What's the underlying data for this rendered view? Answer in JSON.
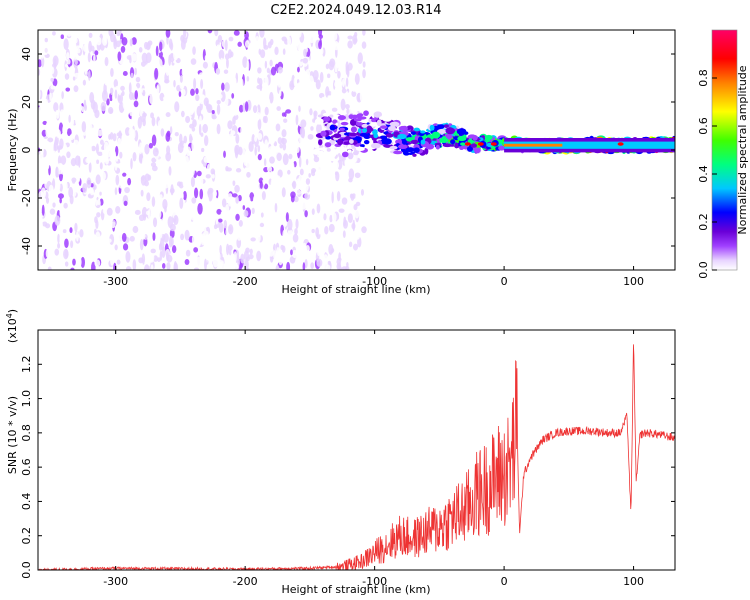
{
  "title": "C2E2.2024.049.12.03.R14",
  "chart_data": [
    {
      "type": "heatmap",
      "xlabel": "Height of straight line (km)",
      "ylabel": "Frequency (Hz)",
      "xlim": [
        -360,
        132
      ],
      "ylim": [
        -50,
        50
      ],
      "xticks": [
        -300,
        -200,
        -100,
        0,
        100
      ],
      "xtick_labels": [
        "-300",
        "-200",
        "-100",
        "0",
        "100"
      ],
      "yticks": [
        -40,
        -20,
        0,
        20,
        40
      ],
      "ytick_labels": [
        "-40",
        "-20",
        "0",
        "20",
        "40"
      ],
      "colorbar": {
        "label": "Normalized spectral amplitude",
        "range": [
          0,
          1
        ],
        "ticks": [
          0.0,
          0.2,
          0.4,
          0.6,
          0.8
        ],
        "tick_labels": [
          "0.0",
          "0.2",
          "0.4",
          "0.6",
          "0.8"
        ],
        "colormap": [
          "#ffffff",
          "#e8d4ff",
          "#a040ff",
          "#6a00d8",
          "#0000ff",
          "#00c8ff",
          "#00ff80",
          "#40ff00",
          "#ffff00",
          "#ff8000",
          "#ff0000",
          "#ff0066"
        ]
      },
      "regions": [
        {
          "desc": "noise",
          "x": [
            -360,
            -120
          ],
          "y": [
            -50,
            50
          ],
          "level": 0.12
        },
        {
          "desc": "signal_band",
          "x": [
            -145,
            132
          ],
          "center_freq_start": 8,
          "center_freq_end": 2,
          "level_start": 0.3,
          "level_end": 0.75
        }
      ]
    },
    {
      "type": "line",
      "xlabel": "Height of straight line (km)",
      "ylabel": "SNR (10 * v/v)",
      "y_multiplier": "(x10",
      "y_multiplier_exp": "4",
      "y_multiplier_close": ")",
      "xlim": [
        -360,
        132
      ],
      "ylim": [
        0,
        1.4
      ],
      "xticks": [
        -300,
        -200,
        -100,
        0,
        100
      ],
      "xtick_labels": [
        "-300",
        "-200",
        "-100",
        "0",
        "100"
      ],
      "yticks": [
        0.0,
        0.2,
        0.4,
        0.6,
        0.8,
        1.0,
        1.2
      ],
      "ytick_labels": [
        "0.0",
        "0.2",
        "0.4",
        "0.6",
        "0.8",
        "1.0",
        "1.2"
      ],
      "color": "#ee3333",
      "series": [
        {
          "x": [
            -360,
            -300,
            -200,
            -150,
            -125,
            -110,
            -100,
            -90,
            -80,
            -70,
            -60,
            -50,
            -40,
            -30,
            -20,
            -10,
            -5,
            0,
            5,
            10,
            12,
            15,
            20,
            30,
            40,
            50,
            60,
            70,
            80,
            90,
            95,
            98,
            100,
            102,
            105,
            110,
            120,
            132
          ],
          "y": [
            0.0,
            0.01,
            0.005,
            0.01,
            0.02,
            0.05,
            0.1,
            0.15,
            0.2,
            0.18,
            0.22,
            0.25,
            0.3,
            0.35,
            0.45,
            0.5,
            0.55,
            0.56,
            0.6,
            0.85,
            0.2,
            0.55,
            0.65,
            0.76,
            0.8,
            0.81,
            0.81,
            0.81,
            0.8,
            0.8,
            0.9,
            0.3,
            1.35,
            0.5,
            0.79,
            0.8,
            0.79,
            0.77
          ]
        }
      ]
    }
  ]
}
